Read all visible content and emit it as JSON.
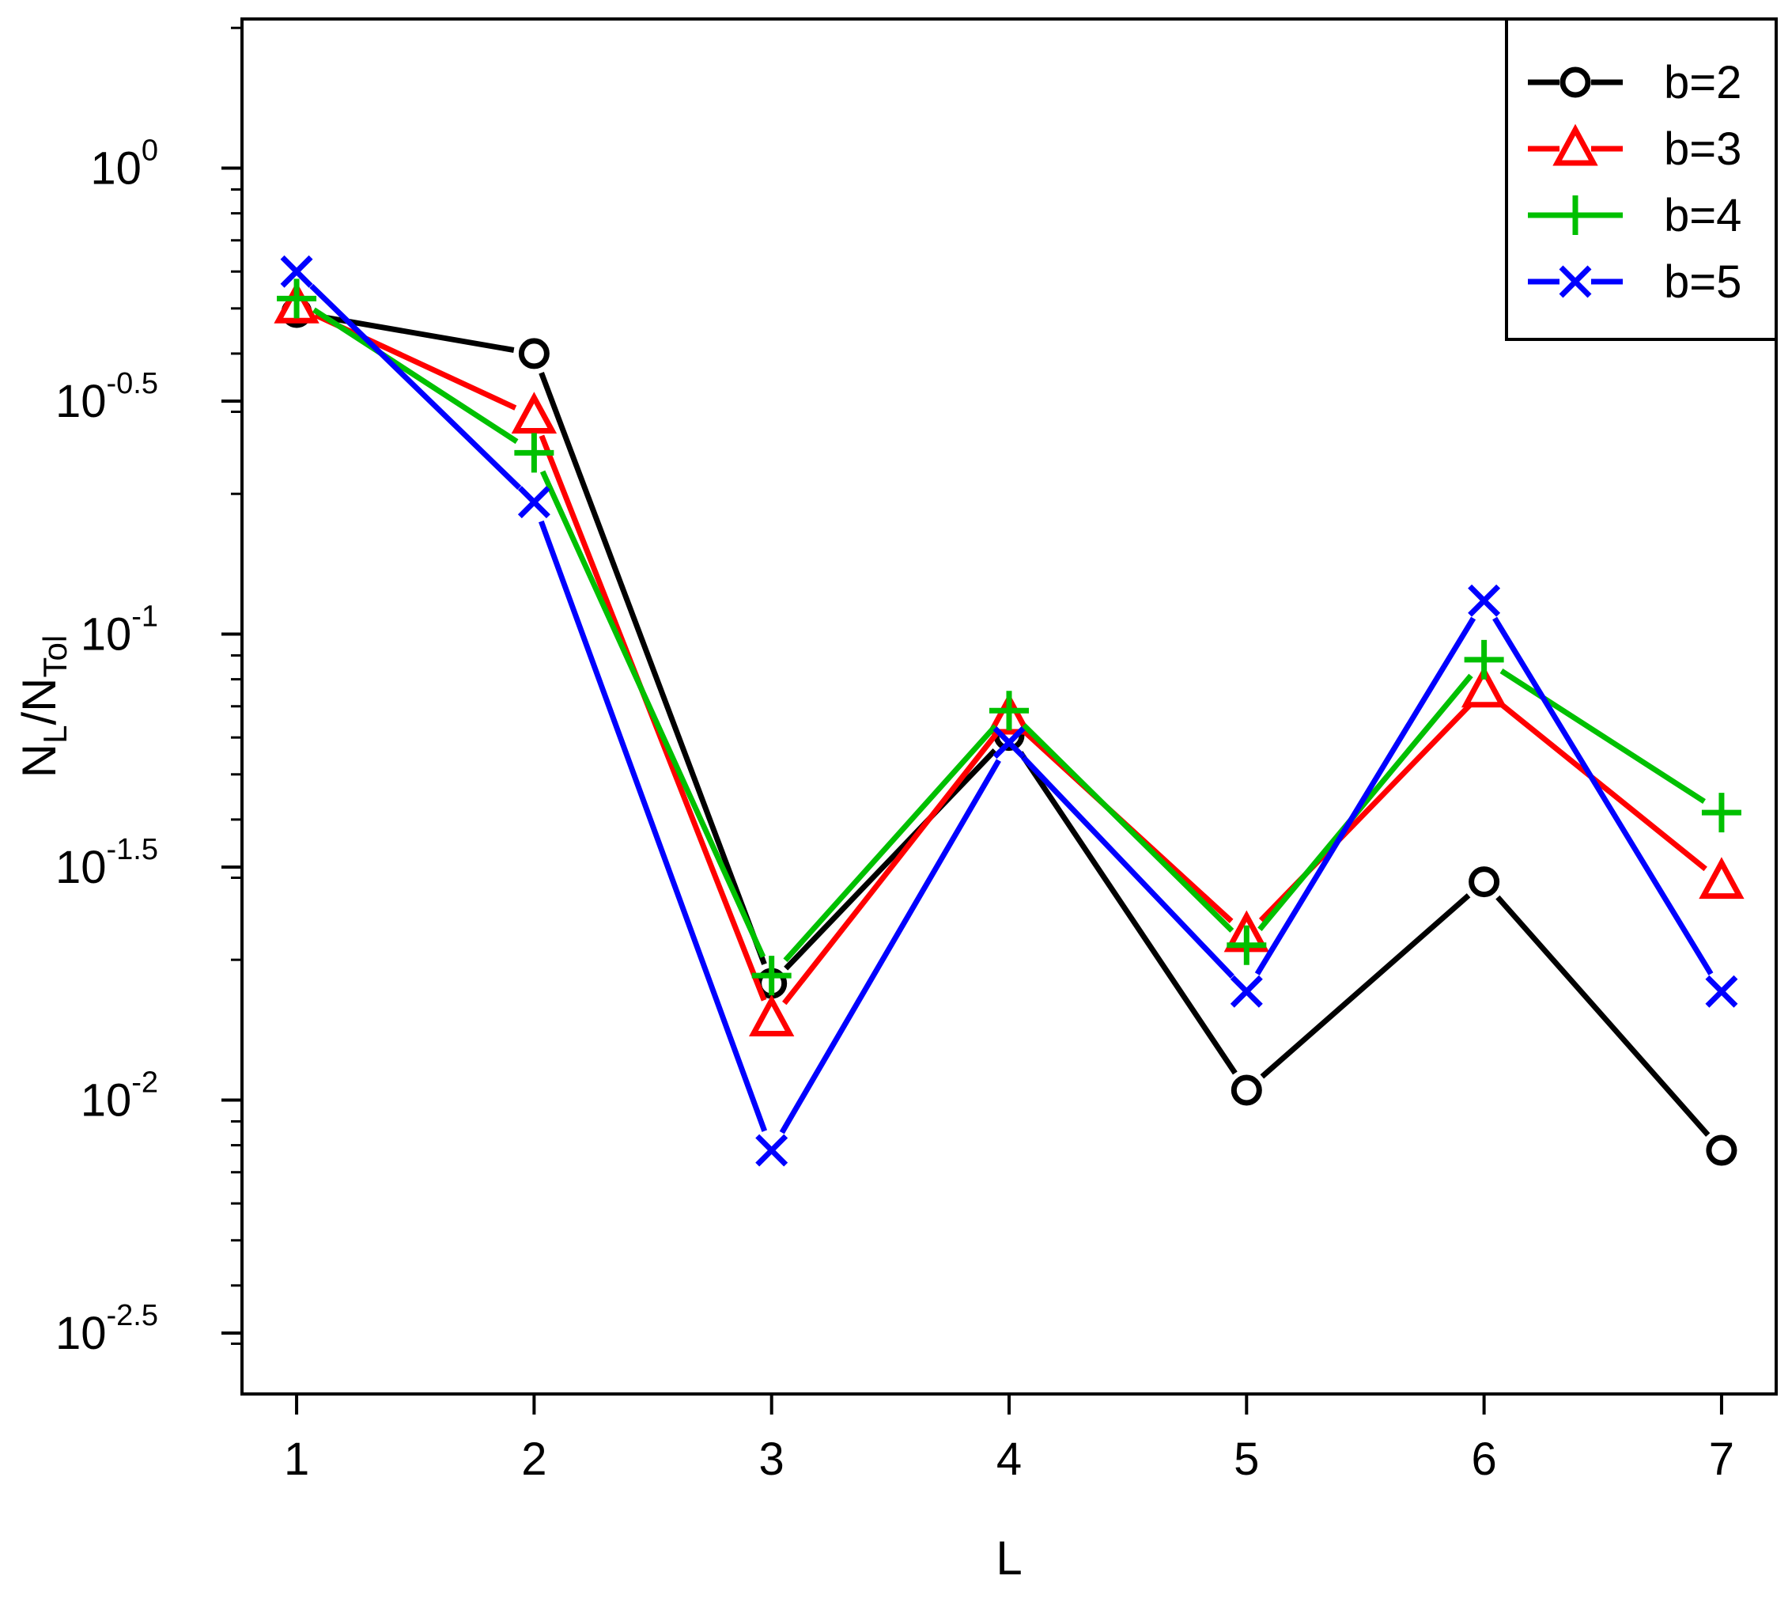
{
  "chart_data": {
    "type": "line",
    "title": "",
    "xlabel": "L",
    "ylabel_main": "N",
    "ylabel_sub1": "L",
    "ylabel_sep": "/N",
    "ylabel_sub2": "Tol",
    "x": [
      1,
      2,
      3,
      4,
      5,
      6,
      7
    ],
    "xlim": [
      0.77,
      7.23
    ],
    "y_scale": "log10",
    "ylim": [
      0.00234,
      2.09
    ],
    "y_ticks": [
      {
        "value": 1.0,
        "base": "10",
        "exp": "0"
      },
      {
        "value": 0.3162,
        "base": "10",
        "exp": "-0.5"
      },
      {
        "value": 0.1,
        "base": "10",
        "exp": "-1"
      },
      {
        "value": 0.03162,
        "base": "10",
        "exp": "-1.5"
      },
      {
        "value": 0.01,
        "base": "10",
        "exp": "-2"
      },
      {
        "value": 0.003162,
        "base": "10",
        "exp": "-2.5"
      }
    ],
    "x_tick_labels": [
      "1",
      "2",
      "3",
      "4",
      "5",
      "6",
      "7"
    ],
    "grid": false,
    "legend_position": "top-right",
    "series": [
      {
        "name": "b=2",
        "color": "#000000",
        "marker": "circle",
        "values": [
          0.49,
          0.4,
          0.0178,
          0.0606,
          0.0105,
          0.0294,
          0.0078
        ]
      },
      {
        "name": "b=3",
        "color": "#ff0000",
        "marker": "triangle",
        "values": [
          0.505,
          0.293,
          0.0149,
          0.0662,
          0.0226,
          0.0757,
          0.0294
        ]
      },
      {
        "name": "b=4",
        "color": "#00c000",
        "marker": "plus",
        "values": [
          0.525,
          0.245,
          0.0185,
          0.0685,
          0.0215,
          0.0881,
          0.0414
        ]
      },
      {
        "name": "b=5",
        "color": "#0000ff",
        "marker": "cross",
        "values": [
          0.6,
          0.192,
          0.0078,
          0.0585,
          0.0171,
          0.118,
          0.0171
        ]
      }
    ]
  }
}
